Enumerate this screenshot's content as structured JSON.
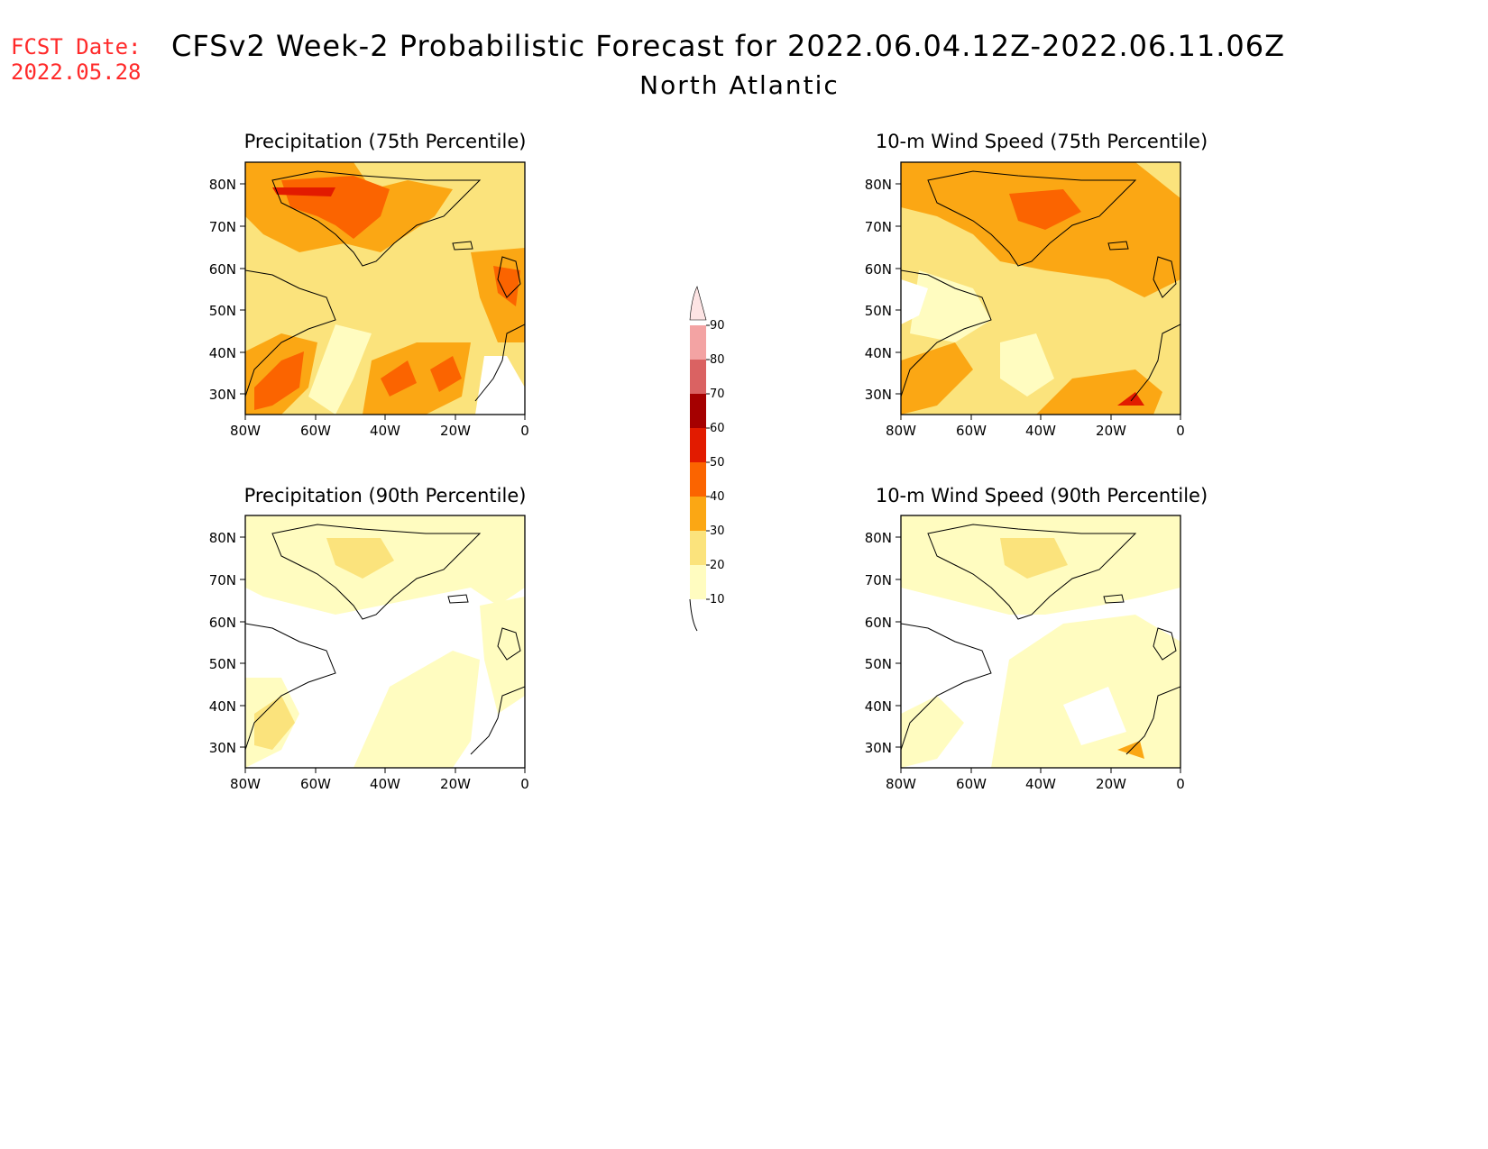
{
  "header": {
    "fcst_label": "FCST Date:",
    "fcst_date": "2022.05.28",
    "title": "CFSv2 Week-2 Probabilistic Forecast for 2022.06.04.12Z-2022.06.11.06Z",
    "subtitle": "North Atlantic"
  },
  "axes": {
    "lat_labels": [
      "80N",
      "70N",
      "60N",
      "50N",
      "40N",
      "30N"
    ],
    "lon_labels": [
      "80W",
      "60W",
      "40W",
      "20W",
      "0"
    ]
  },
  "panels": [
    {
      "id": "p75",
      "title": "Precipitation (75th Percentile)",
      "intensity": "high"
    },
    {
      "id": "w75",
      "title": "10-m Wind Speed (75th Percentile)",
      "intensity": "high"
    },
    {
      "id": "p90",
      "title": "Precipitation (90th Percentile)",
      "intensity": "low"
    },
    {
      "id": "w90",
      "title": "10-m Wind Speed (90th Percentile)",
      "intensity": "low"
    }
  ],
  "colorbar": {
    "levels": [
      "10",
      "20",
      "30",
      "40",
      "50",
      "60",
      "70",
      "80",
      "90"
    ],
    "colors": [
      "#fffcc0",
      "#fbe37c",
      "#fba714",
      "#fb6400",
      "#e21b00",
      "#a50000",
      "#da6262",
      "#f3a3a3",
      "#fde4e4"
    ]
  }
}
